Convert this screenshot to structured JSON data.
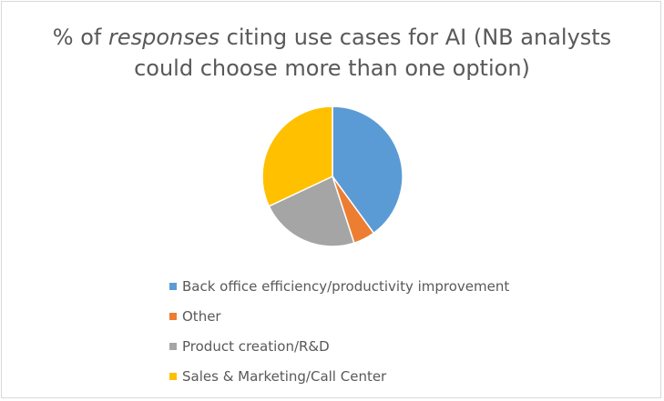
{
  "chart_data": {
    "type": "pie",
    "title_parts": {
      "prefix": "% of ",
      "emphasis": "responses",
      "after_emphasis": " citing use cases for AI (NB analysts",
      "line2": "could choose more than one option)"
    },
    "categories": [
      "Back office efficiency/productivity improvement",
      "Other",
      "Product creation/R&D",
      "Sales & Marketing/Call Center"
    ],
    "values": [
      40,
      5,
      23,
      32
    ],
    "colors": [
      "#5b9bd5",
      "#ed7d31",
      "#a5a5a5",
      "#ffc000"
    ],
    "legend_position": "bottom"
  }
}
